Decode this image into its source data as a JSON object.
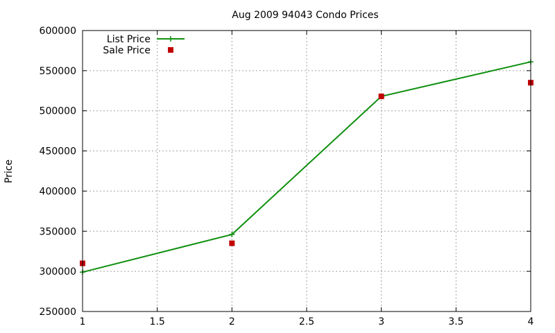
{
  "chart_data": {
    "type": "line",
    "title": "Aug 2009 94043 Condo Prices",
    "xlabel": "",
    "ylabel": "Price",
    "xlim": [
      1,
      4
    ],
    "ylim": [
      250000,
      600000
    ],
    "x_ticks": [
      "1",
      "1.5",
      "2",
      "2.5",
      "3",
      "3.5",
      "4"
    ],
    "y_ticks": [
      "250000",
      "300000",
      "350000",
      "400000",
      "450000",
      "500000",
      "550000",
      "600000"
    ],
    "grid": true,
    "legend_position": "top-left",
    "series": [
      {
        "name": "List Price",
        "style": "linespoints",
        "marker": "plus",
        "color": "#109010",
        "x": [
          1,
          2,
          3,
          4
        ],
        "y": [
          299000,
          346000,
          518000,
          561000
        ]
      },
      {
        "name": "Sale Price",
        "style": "points",
        "marker": "square",
        "color": "#c00000",
        "x": [
          1,
          2,
          3,
          4
        ],
        "y": [
          310000,
          335000,
          518000,
          535000
        ]
      }
    ]
  }
}
